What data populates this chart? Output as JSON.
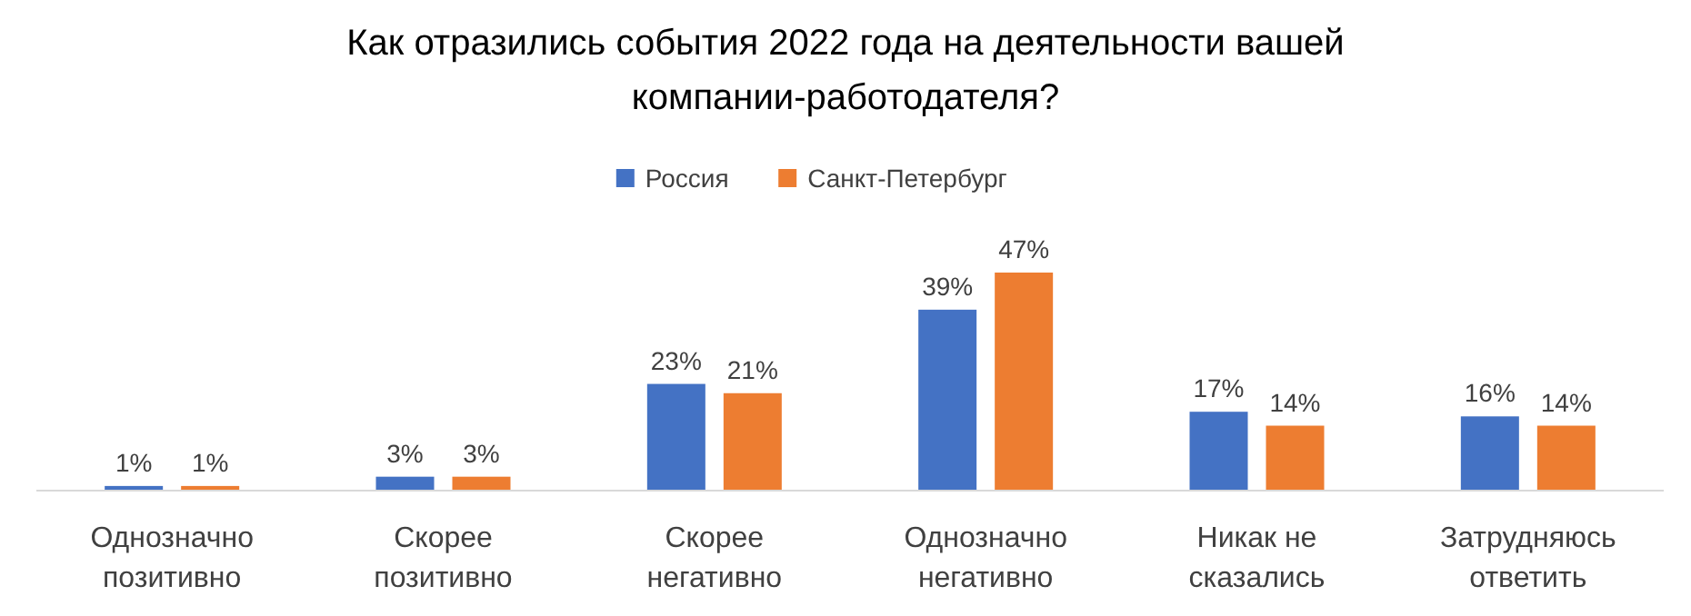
{
  "chart_data": {
    "type": "bar",
    "title": "Как отразились события 2022 года на деятельности вашей компании-работодателя?",
    "categories": [
      "Однозначно позитивно",
      "Скорее позитивно",
      "Скорее негативно",
      "Однозначно негативно",
      "Никак не сказались",
      "Затрудняюсь ответить"
    ],
    "series": [
      {
        "name": "Россия",
        "color": "#4472c4",
        "values": [
          1,
          3,
          23,
          39,
          17,
          16
        ],
        "value_labels": [
          "1%",
          "3%",
          "23%",
          "39%",
          "17%",
          "16%"
        ]
      },
      {
        "name": "Санкт-Петербург",
        "color": "#ed7d31",
        "values": [
          1,
          3,
          21,
          47,
          14,
          14
        ],
        "value_labels": [
          "1%",
          "3%",
          "21%",
          "47%",
          "14%",
          "14%"
        ]
      }
    ],
    "legend": "top",
    "grid": false
  }
}
